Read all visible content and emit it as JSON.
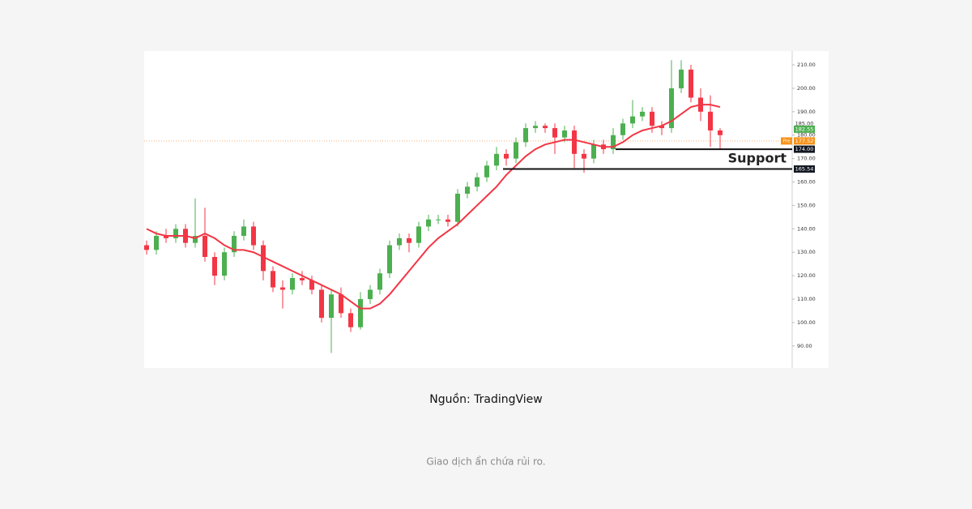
{
  "chart_data": {
    "type": "candlestick",
    "open": [
      133,
      131,
      137,
      136,
      140,
      134,
      137,
      128,
      120,
      130,
      137,
      141,
      133,
      122,
      115,
      114,
      119,
      118,
      114,
      102,
      112,
      104,
      98,
      110,
      114,
      121,
      133,
      136,
      134,
      141,
      144,
      144,
      143,
      155,
      158,
      162,
      167,
      172,
      170,
      177,
      183,
      184,
      183,
      179,
      182,
      172,
      170,
      176,
      174,
      180,
      185,
      188,
      190,
      184,
      183,
      200,
      208,
      196,
      190,
      182
    ],
    "high": [
      135,
      139,
      140,
      142,
      142,
      153,
      149,
      130,
      132,
      139,
      144,
      143,
      135,
      124,
      118,
      121,
      122,
      120,
      116,
      114,
      115,
      106,
      113,
      116,
      123,
      135,
      138,
      138,
      143,
      146,
      146,
      146,
      157,
      160,
      164,
      169,
      175,
      174,
      179,
      185,
      186,
      185,
      185,
      184,
      184,
      174,
      178,
      178,
      183,
      187,
      195,
      192,
      192,
      186,
      212,
      212,
      210,
      200,
      197,
      183
    ],
    "low": [
      129,
      129,
      134,
      134,
      132,
      132,
      126,
      116,
      118,
      128,
      135,
      131,
      118,
      113,
      106,
      112,
      116,
      112,
      100,
      87,
      102,
      96,
      97,
      108,
      112,
      119,
      131,
      130,
      132,
      139,
      142,
      141,
      141,
      153,
      156,
      160,
      165,
      167,
      168,
      175,
      181,
      181,
      172,
      177,
      166,
      164,
      168,
      172,
      172,
      178,
      183,
      186,
      181,
      180,
      181,
      198,
      194,
      186,
      175,
      174
    ],
    "close": [
      131,
      137,
      136,
      140,
      134,
      137,
      128,
      120,
      130,
      137,
      141,
      133,
      122,
      115,
      114,
      119,
      118,
      114,
      102,
      112,
      104,
      98,
      110,
      114,
      121,
      133,
      136,
      134,
      141,
      144,
      144,
      143,
      155,
      158,
      162,
      167,
      172,
      170,
      177,
      183,
      184,
      183,
      179,
      182,
      172,
      170,
      176,
      174,
      180,
      185,
      188,
      190,
      184,
      183,
      200,
      208,
      196,
      190,
      182,
      180
    ],
    "moving_average": [
      140,
      138,
      137,
      137,
      137,
      136,
      138,
      136,
      133,
      131,
      131,
      130,
      128,
      126,
      124,
      122,
      120,
      118,
      116,
      114,
      112,
      109,
      106,
      106,
      108,
      112,
      117,
      122,
      127,
      132,
      136,
      139,
      142,
      146,
      150,
      154,
      158,
      163,
      167,
      171,
      174,
      176,
      177,
      178,
      178,
      177,
      176,
      175,
      175,
      177,
      180,
      182,
      183,
      184,
      186,
      189,
      192,
      193,
      193,
      192
    ],
    "up_color": "#4caf50",
    "down_color": "#f23645",
    "ma_color": "#f23645",
    "ylim": [
      80.6,
      215.9
    ],
    "yticks": [
      {
        "value": 90,
        "label": "90.00"
      },
      {
        "value": 100,
        "label": "100.00"
      },
      {
        "value": 110,
        "label": "110.00"
      },
      {
        "value": 120,
        "label": "120.00"
      },
      {
        "value": 130,
        "label": "130.00"
      },
      {
        "value": 140,
        "label": "140.00"
      },
      {
        "value": 150,
        "label": "150.00"
      },
      {
        "value": 160,
        "label": "160.00"
      },
      {
        "value": 170,
        "label": "170.00"
      },
      {
        "value": 180,
        "label": "180.00"
      },
      {
        "value": 190,
        "label": "190.00"
      },
      {
        "value": 200,
        "label": "200.00"
      },
      {
        "value": 210,
        "label": "210.00"
      }
    ],
    "last_price": {
      "value": 182.55,
      "label": "182.55"
    },
    "marker": {
      "value": 185,
      "label": "185.00"
    },
    "pre_market": {
      "tag": "Pre",
      "value": 177.52,
      "label": "177.52"
    },
    "support_levels": [
      {
        "value": 174,
        "label": "174.00"
      },
      {
        "value": 165.54,
        "label": "165.54"
      }
    ],
    "support_label": "Support"
  },
  "caption": "Nguồn: TradingView",
  "disclaimer": "Giao dịch ẩn chứa rủi ro."
}
